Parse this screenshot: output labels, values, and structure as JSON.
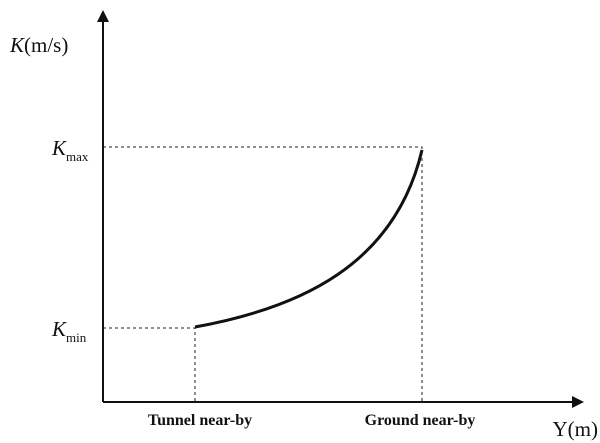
{
  "y_axis": {
    "symbol": "K",
    "unit": "(m/s)"
  },
  "x_axis": {
    "label": "Y(m)"
  },
  "k_max": {
    "symbol": "K",
    "subscript": "max"
  },
  "k_min": {
    "symbol": "K",
    "subscript": "min"
  },
  "x_markers": {
    "left": "Tunnel near-by",
    "right": "Ground near-by"
  }
}
